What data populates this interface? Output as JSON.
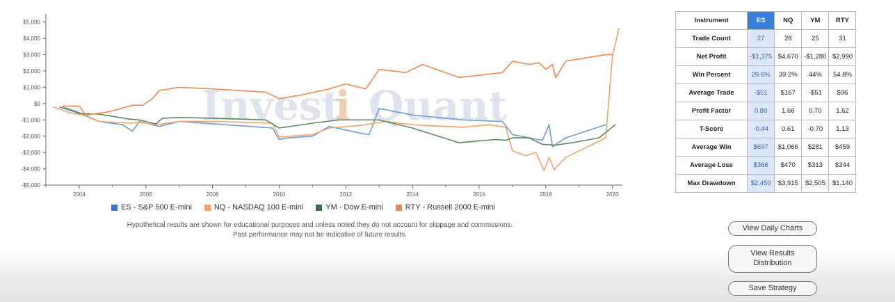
{
  "chart_data": {
    "type": "line",
    "title": "",
    "xlabel": "",
    "ylabel": "",
    "xlim": [
      2003.0,
      2020.3
    ],
    "ylim": [
      -5000,
      5500
    ],
    "x_ticks": [
      "2004",
      "2006",
      "2008",
      "2010",
      "2012",
      "2014",
      "2016",
      "2018",
      "2020"
    ],
    "y_ticks": [
      "$5,000",
      "$4,000",
      "$3,000",
      "$2,000",
      "$1,000",
      "$0",
      "-$1,000",
      "-$2,000",
      "-$3,000",
      "-$4,000",
      "-$5,000"
    ],
    "legend_position": "bottom",
    "series": [
      {
        "name": "ES - S&P 500 E-mini",
        "color": "#6c9bd2",
        "points": [
          [
            2003.5,
            -200
          ],
          [
            2004.0,
            -550
          ],
          [
            2004.6,
            -1100
          ],
          [
            2005.3,
            -1300
          ],
          [
            2005.6,
            -1700
          ],
          [
            2005.8,
            -1100
          ],
          [
            2006.4,
            -1400
          ],
          [
            2007.0,
            -1100
          ],
          [
            2009.8,
            -1500
          ],
          [
            2010.0,
            -2200
          ],
          [
            2010.3,
            -2100
          ],
          [
            2011.0,
            -2000
          ],
          [
            2011.5,
            -1400
          ],
          [
            2012.4,
            -1800
          ],
          [
            2012.7,
            -1900
          ],
          [
            2013.0,
            -300
          ],
          [
            2014.0,
            -700
          ],
          [
            2015.5,
            -1000
          ],
          [
            2016.7,
            -1100
          ],
          [
            2017.0,
            -1900
          ],
          [
            2017.9,
            -2250
          ],
          [
            2018.1,
            -1300
          ],
          [
            2018.2,
            -2650
          ],
          [
            2018.6,
            -2100
          ],
          [
            2019.8,
            -1300
          ]
        ]
      },
      {
        "name": "NQ - NASDAQ 100 E-mini",
        "color": "#f2a36b",
        "points": [
          [
            2003.2,
            -200
          ],
          [
            2003.7,
            -550
          ],
          [
            2004.1,
            -700
          ],
          [
            2004.6,
            -1100
          ],
          [
            2005.5,
            -1200
          ],
          [
            2005.8,
            -1150
          ],
          [
            2006.3,
            -1300
          ],
          [
            2007.0,
            -1100
          ],
          [
            2008.0,
            -1100
          ],
          [
            2009.8,
            -1200
          ],
          [
            2010.0,
            -2050
          ],
          [
            2011.0,
            -1900
          ],
          [
            2011.5,
            -1500
          ],
          [
            2012.4,
            -1350
          ],
          [
            2013.2,
            -1100
          ],
          [
            2014.0,
            -1300
          ],
          [
            2015.5,
            -1450
          ],
          [
            2016.3,
            -1300
          ],
          [
            2016.8,
            -1450
          ],
          [
            2017.0,
            -2900
          ],
          [
            2017.4,
            -3200
          ],
          [
            2017.7,
            -3000
          ],
          [
            2017.95,
            -4100
          ],
          [
            2018.1,
            -3300
          ],
          [
            2018.25,
            -4050
          ],
          [
            2018.6,
            -3300
          ],
          [
            2019.0,
            -2900
          ],
          [
            2019.8,
            -2100
          ],
          [
            2020.0,
            2900
          ],
          [
            2020.2,
            4650
          ]
        ]
      },
      {
        "name": "YM - Dow E-mini",
        "color": "#5e8a5e",
        "points": [
          [
            2003.4,
            -200
          ],
          [
            2004.0,
            -600
          ],
          [
            2004.6,
            -650
          ],
          [
            2005.5,
            -950
          ],
          [
            2005.8,
            -1000
          ],
          [
            2006.3,
            -1250
          ],
          [
            2006.5,
            -900
          ],
          [
            2007.0,
            -850
          ],
          [
            2008.0,
            -900
          ],
          [
            2009.6,
            -1000
          ],
          [
            2010.0,
            -1500
          ],
          [
            2011.0,
            -1200
          ],
          [
            2011.8,
            -1000
          ],
          [
            2013.0,
            -1000
          ],
          [
            2014.0,
            -1500
          ],
          [
            2015.4,
            -2400
          ],
          [
            2016.5,
            -2200
          ],
          [
            2016.8,
            -2250
          ],
          [
            2017.0,
            -2100
          ],
          [
            2017.5,
            -2100
          ],
          [
            2017.9,
            -2500
          ],
          [
            2018.3,
            -2550
          ],
          [
            2018.8,
            -2400
          ],
          [
            2019.6,
            -2100
          ],
          [
            2020.1,
            -1280
          ]
        ]
      },
      {
        "name": "RTY - Russell 2000 E-mini",
        "color": "#ee8a55",
        "points": [
          [
            2003.5,
            -150
          ],
          [
            2003.8,
            -150
          ],
          [
            2004.0,
            -150
          ],
          [
            2004.2,
            -700
          ],
          [
            2004.9,
            -500
          ],
          [
            2005.6,
            -100
          ],
          [
            2005.9,
            -100
          ],
          [
            2006.2,
            300
          ],
          [
            2006.4,
            800
          ],
          [
            2007.0,
            1000
          ],
          [
            2008.0,
            900
          ],
          [
            2009.6,
            700
          ],
          [
            2010.0,
            300
          ],
          [
            2010.6,
            500
          ],
          [
            2011.5,
            900
          ],
          [
            2012.0,
            1200
          ],
          [
            2012.6,
            900
          ],
          [
            2013.0,
            2100
          ],
          [
            2013.8,
            1900
          ],
          [
            2014.3,
            2400
          ],
          [
            2015.4,
            1600
          ],
          [
            2016.7,
            1900
          ],
          [
            2017.0,
            2600
          ],
          [
            2017.5,
            2400
          ],
          [
            2017.8,
            2500
          ],
          [
            2018.0,
            2100
          ],
          [
            2018.2,
            2400
          ],
          [
            2018.3,
            1600
          ],
          [
            2018.6,
            2600
          ],
          [
            2019.8,
            3000
          ],
          [
            2020.0,
            3000
          ]
        ]
      }
    ]
  },
  "watermark": {
    "left": "Invest",
    "q": "i",
    "right": "Quant"
  },
  "disclaimer": {
    "line1": "Hypothetical results are shown for educational purposes and unless noted they do not account for slippage and commissions.",
    "line2": "Past performance may not be indicative of future results."
  },
  "table": {
    "header_label": "Instrument",
    "columns": [
      "ES",
      "NQ",
      "YM",
      "RTY"
    ],
    "active_column": 0,
    "rows": [
      {
        "label": "Trade Count",
        "values": [
          "27",
          "28",
          "25",
          "31"
        ]
      },
      {
        "label": "Net Profit",
        "values": [
          "-$1,375",
          "$4,670",
          "-$1,280",
          "$2,990"
        ]
      },
      {
        "label": "Win Percent",
        "values": [
          "29.6%",
          "39.2%",
          "44%",
          "54.8%"
        ]
      },
      {
        "label": "Average Trade",
        "values": [
          "-$51",
          "$167",
          "-$51",
          "$96"
        ]
      },
      {
        "label": "Profit Factor",
        "values": [
          "0.80",
          "1.66",
          "0.70",
          "1.62"
        ]
      },
      {
        "label": "T-Score",
        "values": [
          "-0.44",
          "0.61",
          "-0.70",
          "1.13"
        ]
      },
      {
        "label": "Average Win",
        "values": [
          "$697",
          "$1,066",
          "$281",
          "$459"
        ]
      },
      {
        "label": "Average Loss",
        "values": [
          "$366",
          "$470",
          "$313",
          "$344"
        ]
      },
      {
        "label": "Max Drawdown",
        "values": [
          "$2,450",
          "$3,915",
          "$2,505",
          "$1,140"
        ]
      }
    ]
  },
  "buttons": {
    "daily_charts": "View Daily Charts",
    "results_distribution_line1": "View Results",
    "results_distribution_line2": "Distribution",
    "save_strategy": "Save Strategy"
  }
}
